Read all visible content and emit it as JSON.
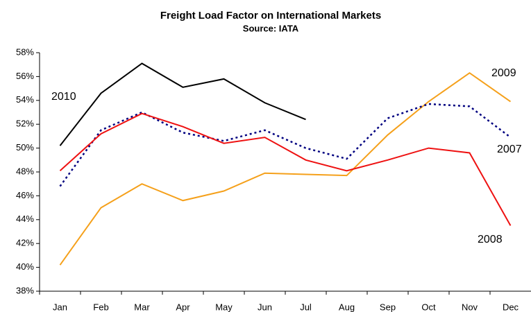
{
  "chart_data": {
    "type": "line",
    "title": "Freight Load Factor on International Markets",
    "subtitle": "Source: IATA",
    "categories": [
      "Jan",
      "Feb",
      "Mar",
      "Apr",
      "May",
      "Jun",
      "Jul",
      "Aug",
      "Sep",
      "Oct",
      "Nov",
      "Dec"
    ],
    "series": [
      {
        "name": "2010",
        "color": "#000000",
        "dash": false,
        "values": [
          50.2,
          54.6,
          57.1,
          55.1,
          55.8,
          53.8,
          52.4,
          null,
          null,
          null,
          null,
          null
        ]
      },
      {
        "name": "2009",
        "color": "#f5a01a",
        "dash": false,
        "values": [
          40.2,
          45.0,
          47.0,
          45.6,
          46.4,
          47.9,
          47.8,
          47.7,
          51.1,
          53.9,
          56.3,
          53.9
        ]
      },
      {
        "name": "2007",
        "color": "#000080",
        "dash": true,
        "values": [
          46.8,
          51.5,
          53.0,
          51.3,
          50.6,
          51.5,
          50.0,
          49.1,
          52.5,
          53.7,
          53.5,
          50.9
        ]
      },
      {
        "name": "2008",
        "color": "#ee1111",
        "dash": false,
        "values": [
          48.1,
          51.2,
          52.9,
          51.8,
          50.4,
          50.9,
          49.0,
          48.1,
          49.0,
          50.0,
          49.6,
          43.5
        ]
      }
    ],
    "ylim": [
      38,
      58
    ],
    "yticks": [
      {
        "value": 38,
        "label": "38%"
      },
      {
        "value": 40,
        "label": "40%"
      },
      {
        "value": 42,
        "label": "42%"
      },
      {
        "value": 44,
        "label": "44%"
      },
      {
        "value": 46,
        "label": "46%"
      },
      {
        "value": 48,
        "label": "48%"
      },
      {
        "value": 50,
        "label": "50%"
      },
      {
        "value": 52,
        "label": "52%"
      },
      {
        "value": 54,
        "label": "54%"
      },
      {
        "value": 56,
        "label": "56%"
      },
      {
        "value": 58,
        "label": "58%"
      }
    ],
    "grid": false
  }
}
